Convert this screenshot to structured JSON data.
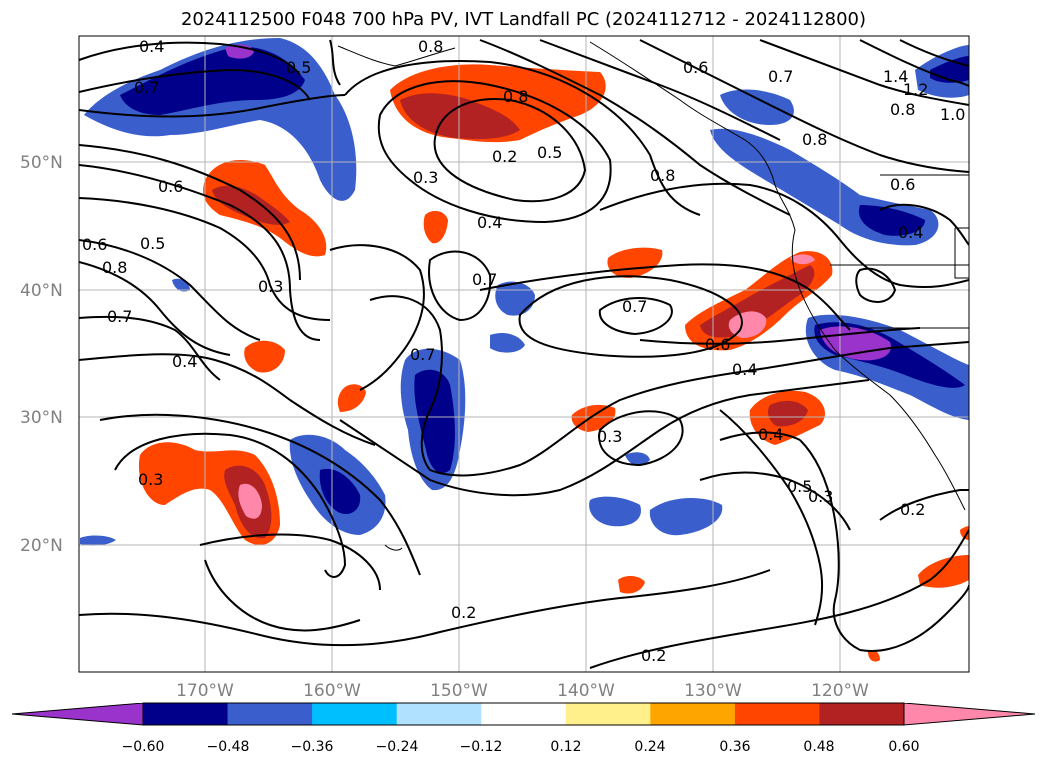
{
  "title": "2024112500 F048 700 hPa PV, IVT Landfall PC (2024112712 - 2024112800)",
  "map": {
    "lat_labels": [
      "50°N",
      "40°N",
      "30°N",
      "20°N"
    ],
    "lon_labels": [
      "170°W",
      "160°W",
      "150°W",
      "140°W",
      "130°W",
      "120°W"
    ],
    "contour_labels": [
      "0.4",
      "0.8",
      "0.7",
      "0.5",
      "0.6",
      "1.4",
      "1.2",
      "1.0",
      "0.8",
      "0.7",
      "0.2",
      "0.5",
      "0.3",
      "0.8",
      "0.4",
      "0.8",
      "0.6",
      "0.6",
      "0.5",
      "0.8",
      "0.7",
      "0.3",
      "0.7",
      "0.7",
      "0.6",
      "0.4",
      "0.4",
      "0.7",
      "0.3",
      "0.3",
      "0.4",
      "0.5",
      "0.3",
      "0.2",
      "0.2",
      "0.2",
      "0.6",
      "0.4",
      "0.8"
    ]
  },
  "colorbar": {
    "colors": [
      "#9933cc",
      "#00008b",
      "#3a5fcd",
      "#00bfff",
      "#b0e2ff",
      "#ffffff",
      "#fff08c",
      "#ffa500",
      "#ff4500",
      "#b22222",
      "#ff88aa"
    ],
    "tick_labels": [
      "−0.60",
      "−0.48",
      "−0.36",
      "−0.24",
      "−0.12",
      "0.12",
      "0.24",
      "0.36",
      "0.48",
      "0.60"
    ]
  }
}
